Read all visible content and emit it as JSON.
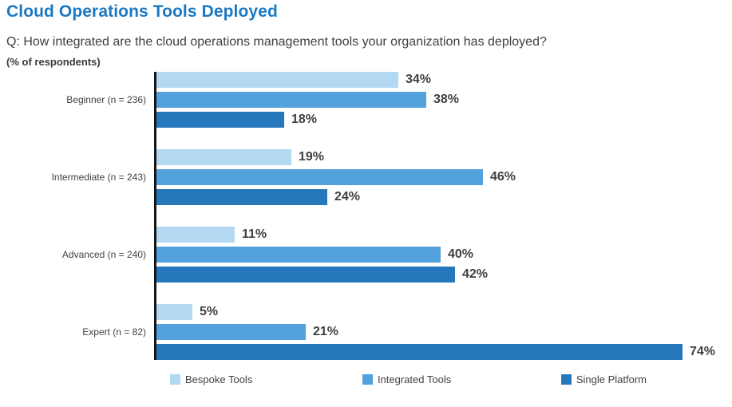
{
  "header": {
    "title": "Cloud Operations Tools Deployed",
    "question": "Q: How integrated are the cloud operations management tools your organization has deployed?",
    "unit_note": "(% of respondents)"
  },
  "colors": {
    "title_accent": "#1B78C1",
    "bespoke_tools": "#B3D9F2",
    "integrated_tools": "#54A2DD",
    "single_platform": "#2578BC",
    "axis": "#161616",
    "text": "#3F4041"
  },
  "chart_data": {
    "type": "bar",
    "orientation": "horizontal",
    "title": "Cloud Operations Tools Deployed",
    "subtitle": "Q: How integrated are the cloud operations management tools your organization has deployed?",
    "unit": "% of respondents",
    "categories": [
      "Beginner (n = 236)",
      "Intermediate (n = 243)",
      "Advanced (n = 240)",
      "Expert (n = 82)"
    ],
    "series": [
      {
        "name": "Bespoke Tools",
        "color": "#B3D9F2",
        "values": [
          34,
          19,
          11,
          5
        ]
      },
      {
        "name": "Integrated Tools",
        "color": "#54A2DD",
        "values": [
          38,
          46,
          40,
          21
        ]
      },
      {
        "name": "Single Platform",
        "color": "#2578BC",
        "values": [
          18,
          24,
          42,
          74
        ]
      }
    ],
    "value_suffix": "%",
    "xlim": [
      0,
      81
    ],
    "grid": false,
    "data_labels": true,
    "legend_position": "bottom"
  }
}
